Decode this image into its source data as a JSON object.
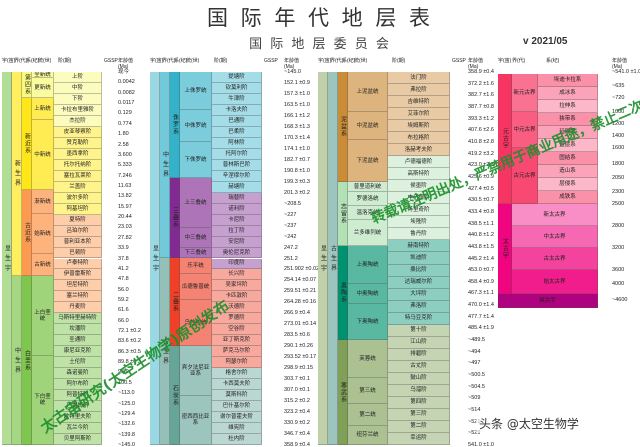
{
  "header": {
    "title": "国 际 年 代 地 层 表",
    "subtitle": "国 际 地 层 委 员 会",
    "version": "v 2021/05"
  },
  "column_headers": {
    "left": [
      "宇(宙)",
      "界(代)",
      "系(纪)",
      "统(世)",
      "阶(期)",
      "GSSP",
      "年龄值(Ma)"
    ],
    "middle": [
      "宇(宙)",
      "界(代)",
      "系(纪)",
      "统(世)",
      "阶(期)",
      "GSSP",
      "年龄值(Ma)"
    ],
    "right": [
      "宇(宙)",
      "界(代)",
      "系(纪)",
      "统(世)",
      "阶(期)",
      "GSSP",
      "年龄值(Ma)"
    ],
    "far": [
      "宇(宙)",
      "界(代)",
      "系(纪)",
      "年龄值(Ma)"
    ]
  },
  "colors": {
    "quaternary": "#f9f97f",
    "neogene": "#ffe619",
    "paleogene": "#fd9a52",
    "cretaceous": "#7fc64e",
    "jurassic": "#34b2c9",
    "triassic": "#812b92",
    "permian": "#f04028",
    "carboniferous": "#67a599",
    "devonian": "#cb8c37",
    "silurian": "#b3e1b6",
    "ordovician": "#009270",
    "cambrian": "#7fa056",
    "proterozoic": "#f73563",
    "archean": "#f0047f",
    "hadean": "#ae027e",
    "watermark": "#1a8f2a"
  },
  "col1": {
    "eon": "显 生 宇",
    "eras": [
      "新 生 界",
      "中 生 界"
    ],
    "systems": [
      "第四系",
      "新近系",
      "古近系",
      "白垩系"
    ],
    "series": [
      "全新统",
      "更新统",
      "上新统",
      "中新统",
      "渐新统",
      "始新统",
      "古新统",
      "上白垩统",
      "下白垩统"
    ],
    "stages": [
      "上阶",
      "中阶",
      "下阶",
      "卡拉布里雅阶",
      "杰拉阶",
      "皮亚琴察阶",
      "赞克勒阶",
      "墨西拿阶",
      "托尔托纳阶",
      "塞拉瓦莱阶",
      "兰盖阶",
      "波尔多阶",
      "阿基坦阶",
      "夏特阶",
      "吕珀尔阶",
      "普利亚本阶",
      "巴顿阶",
      "卢泰特阶",
      "伊普雷斯阶",
      "坦尼特阶",
      "塞兰特阶",
      "丹麦阶",
      "马斯特里赫特阶",
      "坎潘阶",
      "圣通阶",
      "康尼亚克阶",
      "土伦阶",
      "森诺曼阶",
      "阿尔布阶",
      "阿普特阶",
      "巴雷姆阶",
      "欧特里夫阶",
      "瓦兰今阶",
      "贝里阿斯阶"
    ],
    "ages": [
      "现今",
      "0.0042",
      "0.0082",
      "0.0117",
      "0.129",
      "0.774",
      "1.80",
      "2.58",
      "3.600",
      "5.333",
      "7.246",
      "11.63",
      "13.82",
      "15.97",
      "20.44",
      "23.03",
      "27.82",
      "33.9",
      "37.8",
      "41.2",
      "47.8",
      "56.0",
      "59.2",
      "61.6",
      "66.0",
      "72.1 ±0.2",
      "83.6 ±0.2",
      "86.3 ±0.5",
      "89.8 ±0.3",
      "93.9",
      "100.5",
      "~113.0",
      "~125.0",
      "~129.4",
      "~132.6",
      "~139.8",
      "~145.0"
    ]
  },
  "col2": {
    "eon": "显 生 宇",
    "era": "中 生 界",
    "era2": "古 生 界",
    "systems": [
      "侏罗系",
      "三叠系",
      "二叠系",
      "石炭系"
    ],
    "series": [
      "上侏罗统",
      "中侏罗统",
      "下侏罗统",
      "上三叠统",
      "中三叠统",
      "下三叠统",
      "乐平统",
      "瓜德鲁普统",
      "乌拉尔统",
      "宾夕法尼亚亚系",
      "密西西比亚系"
    ],
    "stages": [
      "提塘阶",
      "钦莫利阶",
      "牛津阶",
      "卡洛夫阶",
      "巴通阶",
      "巴柔阶",
      "阿林阶",
      "托阿尔阶",
      "普林斯巴阶",
      "辛涅缪尔阶",
      "赫塘阶",
      "瑞替阶",
      "诺利阶",
      "卡尼阶",
      "拉丁阶",
      "安尼阶",
      "奥伦尼克阶",
      "印度阶",
      "长兴阶",
      "吴家坪阶",
      "卡匹敦阶",
      "沃德阶",
      "罗德阶",
      "空谷阶",
      "亚丁斯克阶",
      "萨克马尔阶",
      "阿瑟尔阶",
      "格舍尔阶",
      "卡西莫夫阶",
      "莫斯科阶",
      "巴什基尔阶",
      "谢尔普霍夫阶",
      "维宪阶",
      "杜内阶"
    ],
    "ages": [
      "~145.0",
      "152.1 ±0.9",
      "157.3 ±1.0",
      "163.5 ±1.0",
      "166.1 ±1.2",
      "168.3 ±1.3",
      "170.3 ±1.4",
      "174.1 ±1.0",
      "182.7 ±0.7",
      "190.8 ±1.0",
      "199.3 ±0.3",
      "201.3 ±0.2",
      "~208.5",
      "~227",
      "~237",
      "~242",
      "247.2",
      "251.2",
      "251.902 ±0.024",
      "254.14 ±0.07",
      "259.51 ±0.21",
      "264.28 ±0.16",
      "266.9 ±0.4",
      "273.01 ±0.14",
      "283.5 ±0.6",
      "290.1 ±0.26",
      "293.52 ±0.17",
      "298.9 ±0.15",
      "303.7 ±0.1",
      "307.0 ±0.1",
      "315.2 ±0.2",
      "323.2 ±0.4",
      "330.9 ±0.2",
      "346.7 ±0.4",
      "358.9 ±0.4"
    ]
  },
  "col3": {
    "eon": "显 生 宇",
    "era": "古 生 界",
    "systems": [
      "泥盆系",
      "志留系",
      "奥陶系",
      "寒武系"
    ],
    "series": [
      "上泥盆统",
      "中泥盆统",
      "下泥盆统",
      "普里道利统",
      "罗德洛统",
      "温洛克统",
      "兰多维列统",
      "上奥陶统",
      "中奥陶统",
      "下奥陶统",
      "芙蓉统",
      "第三统",
      "第二统",
      "纽芬兰统"
    ],
    "stages": [
      "法门阶",
      "弗拉阶",
      "吉维特阶",
      "艾菲尔阶",
      "埃姆斯阶",
      "布拉格阶",
      "洛赫考夫阶",
      "卢德福德阶",
      "高斯特阶",
      "侯墨阶",
      "申伍德阶",
      "特里奇阶",
      "埃隆阶",
      "鲁丹阶",
      "赫南特阶",
      "凯迪阶",
      "桑比阶",
      "达瑞威尔阶",
      "大坪阶",
      "弗洛阶",
      "特马豆克阶",
      "第十阶",
      "江山阶",
      "排碧阶",
      "古丈阶",
      "鼓山阶",
      "乌溜阶",
      "第四阶",
      "第三阶",
      "第二阶",
      "幸运阶"
    ],
    "ages": [
      "358.9 ±0.4",
      "372.2 ±1.6",
      "382.7 ±1.6",
      "387.7 ±0.8",
      "393.3 ±1.2",
      "407.6 ±2.6",
      "410.8 ±2.8",
      "419.2 ±3.2",
      "423.0 ±2.3",
      "425.6 ±0.9",
      "427.4 ±0.5",
      "430.5 ±0.7",
      "433.4 ±0.8",
      "438.5 ±1.1",
      "440.8 ±1.2",
      "443.8 ±1.5",
      "445.2 ±1.4",
      "453.0 ±0.7",
      "458.4 ±0.9",
      "467.3 ±1.1",
      "470.0 ±1.4",
      "477.7 ±1.4",
      "485.4 ±1.9",
      "~489.5",
      "~494",
      "~497",
      "~500.5",
      "~504.5",
      "~509",
      "~514",
      "~521",
      "~529",
      "541.0 ±1.0"
    ]
  },
  "col4": {
    "eons": [
      "元古宇",
      "太古宇",
      "冥古宇"
    ],
    "proterozoic_eras": [
      "新元古界",
      "中元古界",
      "古元古界"
    ],
    "archean_eras": [
      "新太古界",
      "中太古界",
      "古太古界",
      "始太古界"
    ],
    "systems": [
      "埃迪卡拉系",
      "成冰系",
      "拉伸系",
      "狭带系",
      "延展系",
      "盖层系",
      "固结系",
      "造山系",
      "层侵系",
      "成铁系"
    ],
    "ages": [
      "~541.0 ±1.0",
      "~635",
      "~720",
      "1000",
      "1200",
      "1400",
      "1600",
      "1800",
      "2050",
      "2300",
      "2500",
      "2800",
      "3200",
      "3600",
      "4000",
      "~4600"
    ]
  },
  "watermark": {
    "line1": "太古宙研究(太空生物学)原创发布",
    "line2": "转载请注明出处，严禁用于商业用途，禁止二次发布和转载，其他发布者属盗窃"
  },
  "credit": "头条 @太空生物学"
}
